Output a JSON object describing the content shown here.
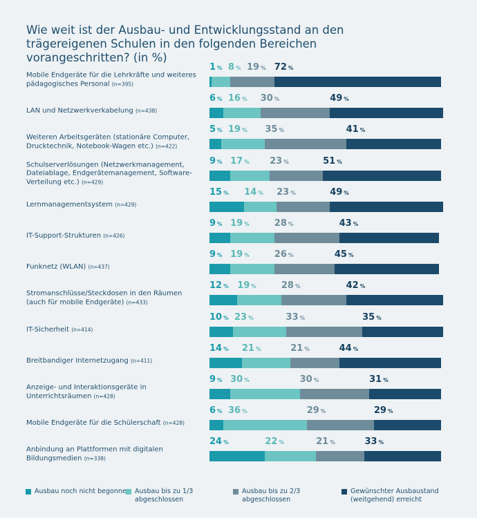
{
  "chart_data": {
    "type": "stacked-bar-horizontal",
    "title": "Wie weit ist der Ausbau- und Entwicklungsstand an den trägereigenen Schulen in den folgenden Bereichen vorangeschritten? (in %)",
    "unit": "%",
    "xlim": [
      0,
      100
    ],
    "categories": [
      "Mobile Endgeräte für die Lehrkräfte und weiteres pädagogisches Personal",
      "LAN und Netzwerkverkabelung",
      "Weiteren Arbeitsgeräten (stationäre Computer, Drucktechnik, Notebook-Wagen etc.)",
      "Schulserverlösungen (Netzwerkmanagement, Dateiablage, Endgerätemanagement, Software-Verteilung etc.)",
      "Lernmanagementsystem",
      "IT-Support-Strukturen",
      "Funknetz (WLAN)",
      "Stromanschlüsse/Steckdosen in den Räumen (auch für mobile Endgeräte)",
      "IT-Sicherheit",
      "Breitbandiger Internetzugang",
      "Anzeige- und Interaktionsgeräte in Unterrichtsräumen",
      "Mobile Endgeräte für die Schülerschaft",
      "Anbindung an Plattformen mit digitalen Bildungsmedien"
    ],
    "sample_sizes": [
      "(n=395)",
      "(n=438)",
      "(n=422)",
      "(n=429)",
      "(n=429)",
      "(n=426)",
      "(n=437)",
      "(n=433)",
      "(n=414)",
      "(n=411)",
      "(n=428)",
      "(n=428)",
      "(n=338)"
    ],
    "series": [
      {
        "name": "Ausbau noch nicht begonnen",
        "color": "#1a9aaa",
        "label_color": "#1a9aaa",
        "values": [
          1,
          6,
          5,
          9,
          15,
          9,
          9,
          12,
          10,
          14,
          9,
          6,
          24
        ]
      },
      {
        "name": "Ausbau bis zu 1/3 abgeschlossen",
        "color": "#6cc5c3",
        "label_color": "#5bb8b6",
        "values": [
          8,
          16,
          19,
          17,
          14,
          19,
          19,
          19,
          23,
          21,
          30,
          36,
          22
        ]
      },
      {
        "name": "Ausbau bis zu 2/3 abgeschlossen",
        "color": "#6e8c9a",
        "label_color": "#6e8c9a",
        "values": [
          19,
          30,
          35,
          23,
          23,
          28,
          26,
          28,
          33,
          21,
          30,
          29,
          21
        ]
      },
      {
        "name": "Gewünschter Ausbaustand (weitgehend) erreicht",
        "color": "#1b4a6b",
        "label_color": "#16405e",
        "values": [
          72,
          49,
          41,
          51,
          49,
          43,
          45,
          42,
          35,
          44,
          31,
          29,
          33
        ]
      }
    ]
  }
}
